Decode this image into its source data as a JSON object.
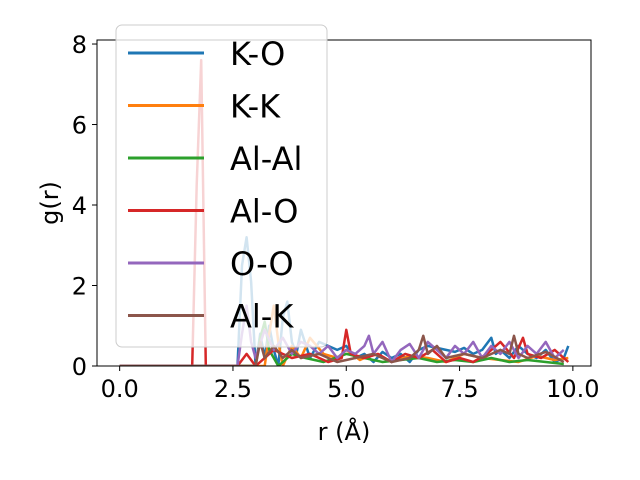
{
  "chart_data": {
    "type": "line",
    "title": "",
    "xlabel": "r (Å)",
    "ylabel": "g(r)",
    "xlim": [
      -0.5,
      10.4
    ],
    "ylim": [
      0,
      8.1
    ],
    "xticks": [
      "0.0",
      "2.5",
      "5.0",
      "7.5",
      "10.0"
    ],
    "xtick_values": [
      0,
      2.5,
      5,
      7.5,
      10
    ],
    "yticks": [
      "0",
      "2",
      "4",
      "6",
      "8"
    ],
    "ytick_values": [
      0,
      2,
      4,
      6,
      8
    ],
    "legend_position": "top-left",
    "grid": false,
    "series": [
      {
        "name": "K-O",
        "color": "#1f77b4",
        "x": [
          0,
          2.6,
          2.7,
          2.8,
          2.9,
          3.0,
          3.1,
          3.2,
          3.3,
          3.4,
          3.5,
          3.6,
          3.7,
          3.8,
          3.9,
          4.0,
          4.2,
          4.4,
          4.6,
          4.8,
          5.0,
          5.2,
          5.4,
          5.6,
          5.8,
          6.0,
          6.2,
          6.4,
          6.6,
          6.8,
          7.0,
          7.2,
          7.4,
          7.6,
          7.8,
          8.0,
          8.2,
          8.3,
          8.4,
          8.6,
          8.8,
          9.0,
          9.2,
          9.4,
          9.6,
          9.8,
          9.9
        ],
        "y": [
          0,
          0,
          2.5,
          3.2,
          2.1,
          0,
          0.8,
          0.2,
          1.0,
          0.4,
          0,
          1.2,
          1.6,
          0.6,
          0.3,
          0.9,
          0.2,
          0.6,
          0.5,
          0.4,
          0.5,
          0.2,
          0.3,
          0.1,
          0.35,
          0.2,
          0.3,
          0.1,
          0.4,
          0.5,
          0.45,
          0.4,
          0.35,
          0.45,
          0.3,
          0.4,
          0.7,
          0.3,
          0.4,
          0.2,
          0.5,
          0.3,
          0.2,
          0.4,
          0.1,
          0.2,
          0.5
        ]
      },
      {
        "name": "K-K",
        "color": "#ff7f0e",
        "x": [
          0,
          3.2,
          3.3,
          3.4,
          3.5,
          3.6,
          3.8,
          4.0,
          4.2,
          4.5,
          4.8,
          5.0,
          5.3,
          5.6,
          6.0,
          6.4,
          6.8,
          7.2,
          7.6,
          8.0,
          8.4,
          8.8,
          9.2,
          9.6,
          9.9
        ],
        "y": [
          0,
          0,
          0.8,
          1.5,
          0.6,
          0,
          0.5,
          0.2,
          0.7,
          0.3,
          0.2,
          0.4,
          0.15,
          0.3,
          0.1,
          0.25,
          0.2,
          0.1,
          0.3,
          0.2,
          0.15,
          0.1,
          0.25,
          0.15,
          0.2
        ]
      },
      {
        "name": "Al-Al",
        "color": "#2ca02c",
        "x": [
          0,
          3.0,
          3.1,
          3.2,
          3.3,
          3.5,
          3.8,
          4.1,
          4.5,
          5.0,
          5.4,
          5.8,
          6.2,
          6.6,
          7.0,
          7.4,
          7.8,
          8.2,
          8.6,
          9.0,
          9.4,
          9.8
        ],
        "y": [
          0,
          0,
          0.7,
          1.1,
          0.4,
          0,
          0.3,
          0.2,
          0.1,
          0.3,
          0.2,
          0.1,
          0.15,
          0.2,
          0.1,
          0.15,
          0.1,
          0.2,
          0.1,
          0.15,
          0.1,
          0.05
        ]
      },
      {
        "name": "Al-O",
        "color": "#d62728",
        "x": [
          0,
          1.6,
          1.7,
          1.8,
          1.9,
          2.6,
          2.8,
          3.0,
          3.4,
          3.8,
          4.2,
          4.6,
          4.9,
          5.0,
          5.1,
          5.4,
          5.7,
          6.0,
          6.3,
          6.6,
          6.9,
          7.2,
          7.5,
          7.8,
          8.1,
          8.4,
          8.7,
          8.9,
          9.0,
          9.3,
          9.6,
          9.9
        ],
        "y": [
          0,
          0,
          4.5,
          7.6,
          0,
          0,
          0.3,
          0,
          0.4,
          0.2,
          0.3,
          0.1,
          0.2,
          0.9,
          0.3,
          0.2,
          0.3,
          0.1,
          0.3,
          0.2,
          0.4,
          0.1,
          0.2,
          0.1,
          0.3,
          0.6,
          0.2,
          0.7,
          0.3,
          0.2,
          0.4,
          0.1
        ]
      },
      {
        "name": "O-O",
        "color": "#9467bd",
        "x": [
          0,
          2.6,
          2.7,
          2.8,
          2.9,
          3.0,
          3.2,
          3.4,
          3.6,
          3.8,
          4.0,
          4.2,
          4.4,
          4.6,
          4.8,
          5.0,
          5.2,
          5.4,
          5.5,
          5.6,
          5.8,
          6.0,
          6.2,
          6.4,
          6.6,
          6.8,
          7.0,
          7.2,
          7.4,
          7.6,
          7.8,
          8.0,
          8.2,
          8.4,
          8.6,
          8.8,
          9.0,
          9.2,
          9.4,
          9.6,
          9.8
        ],
        "y": [
          0,
          0,
          0.8,
          1.5,
          0.6,
          0.2,
          0.9,
          0.4,
          0.7,
          0.3,
          0.6,
          0.5,
          0.3,
          0.5,
          0.2,
          0.4,
          0.3,
          0.5,
          0.75,
          0.3,
          0.6,
          0.1,
          0.4,
          0.55,
          0.2,
          0.6,
          0.4,
          0.2,
          0.5,
          0.3,
          0.6,
          0.2,
          0.5,
          0.3,
          0.6,
          0.2,
          0.5,
          0.3,
          0.6,
          0.2,
          0.4
        ]
      },
      {
        "name": "Al-K",
        "color": "#8c564b",
        "x": [
          0,
          3.0,
          3.1,
          3.2,
          3.4,
          3.6,
          3.8,
          4.0,
          4.4,
          4.8,
          5.2,
          5.6,
          6.0,
          6.4,
          6.6,
          6.7,
          6.8,
          7.0,
          7.2,
          7.6,
          8.0,
          8.4,
          8.6,
          8.7,
          8.8,
          9.0,
          9.4,
          9.8
        ],
        "y": [
          0,
          0,
          0.6,
          0.2,
          0.5,
          0.2,
          0.4,
          0.2,
          0.3,
          0.1,
          0.2,
          0.3,
          0.1,
          0.2,
          0.4,
          0.75,
          0.3,
          0.5,
          0.2,
          0.3,
          0.2,
          0.4,
          0.3,
          0.75,
          0.3,
          0.2,
          0.35,
          0.1
        ]
      }
    ]
  }
}
